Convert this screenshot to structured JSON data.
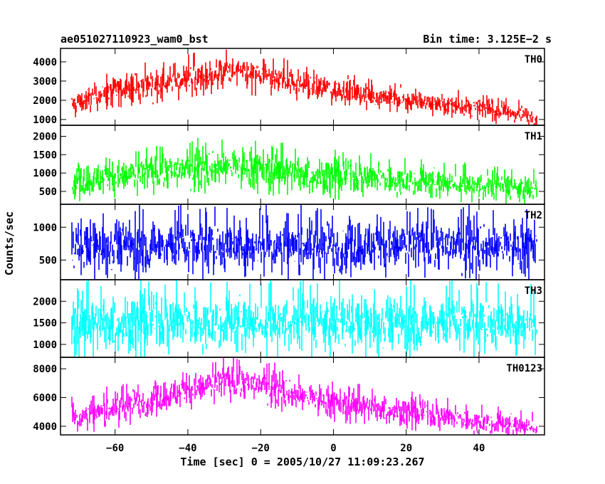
{
  "chart_data": {
    "type": "line",
    "title_left": "ae051027110923_wam0_bst",
    "title_right": "Bin time: 3.125E−2 s",
    "xlabel": "Time [sec] 0 = 2005/10/27 11:09:23.267",
    "ylabel": "Counts/sec",
    "xlim": [
      -75,
      58
    ],
    "x_ticks": [
      -60,
      -40,
      -20,
      0,
      20,
      40
    ],
    "x_range_data": [
      -72,
      56
    ],
    "panels": [
      {
        "name": "TH0",
        "color": "#ff0000",
        "ylim": [
          700,
          4700
        ],
        "y_ticks": [
          1000,
          2000,
          3000,
          4000
        ],
        "x": [
          -72,
          -60,
          -45,
          -30,
          -20,
          -10,
          0,
          20,
          40,
          56
        ],
        "mean": [
          1800,
          2500,
          3000,
          3450,
          3300,
          2900,
          2550,
          2000,
          1600,
          1150
        ],
        "noise": [
          450,
          500,
          520,
          550,
          520,
          480,
          450,
          400,
          350,
          300
        ]
      },
      {
        "name": "TH1",
        "color": "#00ff00",
        "ylim": [
          150,
          2300
        ],
        "y_ticks": [
          500,
          1000,
          1500,
          2000
        ],
        "x": [
          -72,
          -60,
          -45,
          -30,
          -20,
          -10,
          0,
          20,
          40,
          56
        ],
        "mean": [
          750,
          900,
          1050,
          1200,
          1150,
          1000,
          900,
          800,
          650,
          550
        ],
        "noise": [
          300,
          320,
          340,
          360,
          350,
          330,
          310,
          280,
          250,
          230
        ]
      },
      {
        "name": "TH2",
        "color": "#0000ff",
        "ylim": [
          200,
          1350
        ],
        "y_ticks": [
          500,
          1000
        ],
        "x": [
          -72,
          56
        ],
        "mean": [
          720,
          720
        ],
        "noise": [
          270,
          270
        ]
      },
      {
        "name": "TH3",
        "color": "#00ffff",
        "ylim": [
          700,
          2500
        ],
        "y_ticks": [
          1000,
          1500,
          2000
        ],
        "x": [
          -72,
          56
        ],
        "mean": [
          1500,
          1500
        ],
        "noise": [
          430,
          430
        ]
      },
      {
        "name": "TH0123",
        "color": "#ff00ff",
        "ylim": [
          3400,
          8800
        ],
        "y_ticks": [
          4000,
          6000,
          8000
        ],
        "x": [
          -72,
          -60,
          -45,
          -30,
          -20,
          -10,
          0,
          20,
          40,
          56
        ],
        "mean": [
          4500,
          5300,
          6200,
          7100,
          6900,
          6200,
          5700,
          5000,
          4300,
          3900
        ],
        "noise": [
          650,
          700,
          750,
          800,
          780,
          720,
          680,
          620,
          560,
          500
        ]
      }
    ]
  }
}
